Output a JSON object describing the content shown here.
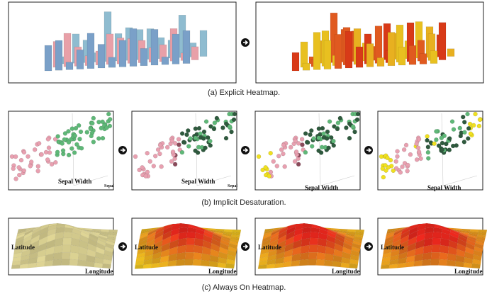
{
  "figure": {
    "rows": [
      {
        "caption": "(a) Explicit Heatmap."
      },
      {
        "caption": "(b) Implicit Desaturation.",
        "panels": [
          {
            "labels": [
              "Sepal Width",
              "Sepal"
            ]
          },
          {
            "labels": [
              "Sepal Width",
              "Sepal"
            ]
          },
          {
            "labels": [
              "Sepal Width"
            ]
          },
          {
            "labels": [
              "Sepal Width"
            ]
          }
        ]
      },
      {
        "caption": "(c) Always On Heatmap.",
        "panels": [
          {
            "labels": [
              "Latitude",
              "Longitude"
            ]
          },
          {
            "labels": [
              "Latitude",
              "Longitude"
            ]
          },
          {
            "labels": [
              "Latitude",
              "Longitude"
            ]
          },
          {
            "labels": [
              "Latitude",
              "Longitude"
            ]
          }
        ]
      }
    ]
  }
}
